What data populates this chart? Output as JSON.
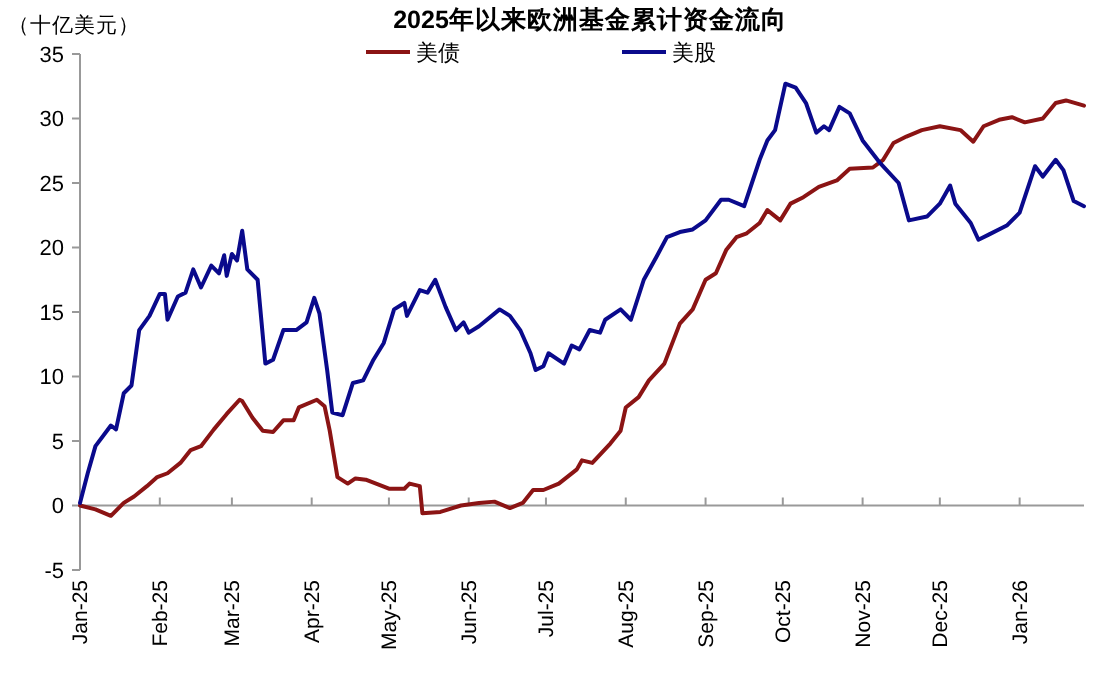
{
  "chart_data": {
    "type": "line",
    "title": "2025年以来欧洲基金累计资金流向",
    "ylabel": "（十亿美元）",
    "legend": "top",
    "line_style": "solid",
    "marker": "none",
    "xlim": [
      "2025-01-01",
      "2026-01-26"
    ],
    "xticks": [
      {
        "value": "2025-01-01",
        "label": "Jan-25"
      },
      {
        "value": "2025-02-01",
        "label": "Feb-25"
      },
      {
        "value": "2025-03-01",
        "label": "Mar-25"
      },
      {
        "value": "2025-04-01",
        "label": "Apr-25"
      },
      {
        "value": "2025-05-01",
        "label": "May-25"
      },
      {
        "value": "2025-06-01",
        "label": "Jun-25"
      },
      {
        "value": "2025-07-01",
        "label": "Jul-25"
      },
      {
        "value": "2025-08-01",
        "label": "Aug-25"
      },
      {
        "value": "2025-09-01",
        "label": "Sep-25"
      },
      {
        "value": "2025-10-01",
        "label": "Oct-25"
      },
      {
        "value": "2025-11-01",
        "label": "Nov-25"
      },
      {
        "value": "2025-12-01",
        "label": "Dec-25"
      },
      {
        "value": "2026-01-01",
        "label": "Jan-26"
      }
    ],
    "ylim": [
      -5,
      35
    ],
    "yticks": [
      -5,
      0,
      5,
      10,
      15,
      20,
      25,
      30,
      35
    ],
    "series": [
      {
        "name": "美债",
        "color": "#8b1414",
        "x": [
          "2025-01-01",
          "2025-01-07",
          "2025-01-13",
          "2025-01-18",
          "2025-01-22",
          "2025-01-27",
          "2025-01-31",
          "2025-02-04",
          "2025-02-09",
          "2025-02-13",
          "2025-02-17",
          "2025-02-22",
          "2025-02-27",
          "2025-03-04",
          "2025-03-05",
          "2025-03-09",
          "2025-03-13",
          "2025-03-17",
          "2025-03-21",
          "2025-03-25",
          "2025-03-27",
          "2025-04-03",
          "2025-04-06",
          "2025-04-08",
          "2025-04-11",
          "2025-04-15",
          "2025-04-18",
          "2025-04-22",
          "2025-04-26",
          "2025-05-01",
          "2025-05-07",
          "2025-05-09",
          "2025-05-13",
          "2025-05-14",
          "2025-05-21",
          "2025-05-29",
          "2025-06-05",
          "2025-06-11",
          "2025-06-17",
          "2025-06-22",
          "2025-06-26",
          "2025-06-30",
          "2025-07-06",
          "2025-07-13",
          "2025-07-15",
          "2025-07-19",
          "2025-07-26",
          "2025-07-30",
          "2025-08-01",
          "2025-08-06",
          "2025-08-10",
          "2025-08-16",
          "2025-08-22",
          "2025-08-27",
          "2025-09-01",
          "2025-09-05",
          "2025-09-09",
          "2025-09-13",
          "2025-09-17",
          "2025-09-22",
          "2025-09-25",
          "2025-09-30",
          "2025-10-04",
          "2025-10-09",
          "2025-10-15",
          "2025-10-22",
          "2025-10-27",
          "2025-11-05",
          "2025-11-09",
          "2025-11-13",
          "2025-11-18",
          "2025-11-24",
          "2025-12-01",
          "2025-12-09",
          "2025-12-14",
          "2025-12-18",
          "2025-12-24",
          "2025-12-29",
          "2026-01-03",
          "2026-01-10",
          "2026-01-15",
          "2026-01-19",
          "2026-01-26"
        ],
        "values": [
          0,
          -0.3,
          -0.8,
          0.2,
          0.7,
          1.5,
          2.2,
          2.5,
          3.3,
          4.3,
          4.6,
          5.9,
          7.1,
          8.2,
          8.1,
          6.8,
          5.8,
          5.7,
          6.6,
          6.6,
          7.6,
          8.2,
          7.7,
          5.8,
          2.2,
          1.7,
          2.1,
          2.0,
          1.7,
          1.3,
          1.3,
          1.7,
          1.5,
          -0.6,
          -0.5,
          0,
          0.2,
          0.3,
          -0.2,
          0.2,
          1.2,
          1.2,
          1.7,
          2.8,
          3.5,
          3.3,
          4.8,
          5.8,
          7.6,
          8.4,
          9.7,
          11.0,
          14.1,
          15.2,
          17.5,
          18.0,
          19.8,
          20.8,
          21.1,
          21.9,
          22.9,
          22.1,
          23.4,
          23.9,
          24.7,
          25.2,
          26.1,
          26.2,
          26.8,
          28.1,
          28.6,
          29.1,
          29.4,
          29.1,
          28.2,
          29.4,
          29.9,
          30.1,
          29.7,
          30.0,
          31.2,
          31.4,
          31.0
        ]
      },
      {
        "name": "美股",
        "color": "#0a0a8c",
        "x": [
          "2025-01-01",
          "2025-01-04",
          "2025-01-07",
          "2025-01-13",
          "2025-01-15",
          "2025-01-18",
          "2025-01-21",
          "2025-01-24",
          "2025-01-28",
          "2025-02-01",
          "2025-02-03",
          "2025-02-04",
          "2025-02-08",
          "2025-02-11",
          "2025-02-14",
          "2025-02-17",
          "2025-02-21",
          "2025-02-24",
          "2025-02-26",
          "2025-02-27",
          "2025-03-01",
          "2025-03-03",
          "2025-03-05",
          "2025-03-07",
          "2025-03-11",
          "2025-03-14",
          "2025-03-17",
          "2025-03-21",
          "2025-03-26",
          "2025-03-30",
          "2025-04-02",
          "2025-04-04",
          "2025-04-07",
          "2025-04-09",
          "2025-04-13",
          "2025-04-17",
          "2025-04-21",
          "2025-04-25",
          "2025-04-29",
          "2025-05-03",
          "2025-05-07",
          "2025-05-08",
          "2025-05-13",
          "2025-05-16",
          "2025-05-19",
          "2025-05-23",
          "2025-05-27",
          "2025-05-30",
          "2025-06-01",
          "2025-06-05",
          "2025-06-13",
          "2025-06-17",
          "2025-06-21",
          "2025-06-25",
          "2025-06-27",
          "2025-06-30",
          "2025-07-02",
          "2025-07-08",
          "2025-07-11",
          "2025-07-14",
          "2025-07-18",
          "2025-07-22",
          "2025-07-24",
          "2025-07-30",
          "2025-08-03",
          "2025-08-08",
          "2025-08-13",
          "2025-08-17",
          "2025-08-22",
          "2025-08-27",
          "2025-09-01",
          "2025-09-07",
          "2025-09-10",
          "2025-09-16",
          "2025-09-19",
          "2025-09-22",
          "2025-09-25",
          "2025-09-28",
          "2025-10-02",
          "2025-10-06",
          "2025-10-10",
          "2025-10-14",
          "2025-10-17",
          "2025-10-19",
          "2025-10-23",
          "2025-10-27",
          "2025-11-01",
          "2025-11-08",
          "2025-11-15",
          "2025-11-19",
          "2025-11-26",
          "2025-12-01",
          "2025-12-05",
          "2025-12-07",
          "2025-12-13",
          "2025-12-16",
          "2025-12-20",
          "2025-12-27",
          "2026-01-01",
          "2026-01-07",
          "2026-01-10",
          "2026-01-15",
          "2026-01-18",
          "2026-01-22",
          "2026-01-26"
        ],
        "values": [
          0.2,
          2.5,
          4.6,
          6.2,
          5.9,
          8.7,
          9.3,
          13.6,
          14.7,
          16.4,
          16.4,
          14.4,
          16.2,
          16.5,
          18.3,
          16.9,
          18.6,
          18.0,
          19.4,
          17.8,
          19.5,
          19.0,
          21.3,
          18.3,
          17.5,
          11.0,
          11.3,
          13.6,
          13.6,
          14.2,
          16.1,
          14.9,
          10.5,
          7.2,
          7.0,
          9.5,
          9.7,
          11.3,
          12.6,
          15.2,
          15.7,
          14.7,
          16.7,
          16.5,
          17.5,
          15.4,
          13.6,
          14.2,
          13.4,
          13.9,
          15.2,
          14.7,
          13.6,
          11.8,
          10.5,
          10.8,
          11.8,
          11.0,
          12.4,
          12.1,
          13.6,
          13.4,
          14.4,
          15.2,
          14.4,
          17.5,
          19.3,
          20.8,
          21.2,
          21.4,
          22.1,
          23.7,
          23.7,
          23.2,
          25.0,
          26.8,
          28.3,
          29.1,
          32.7,
          32.4,
          31.2,
          28.9,
          29.4,
          29.1,
          30.9,
          30.4,
          28.3,
          26.5,
          25.0,
          22.1,
          22.4,
          23.4,
          24.8,
          23.4,
          21.9,
          20.6,
          21.0,
          21.7,
          22.7,
          26.3,
          25.5,
          26.8,
          26.0,
          23.6,
          23.2
        ]
      }
    ]
  }
}
